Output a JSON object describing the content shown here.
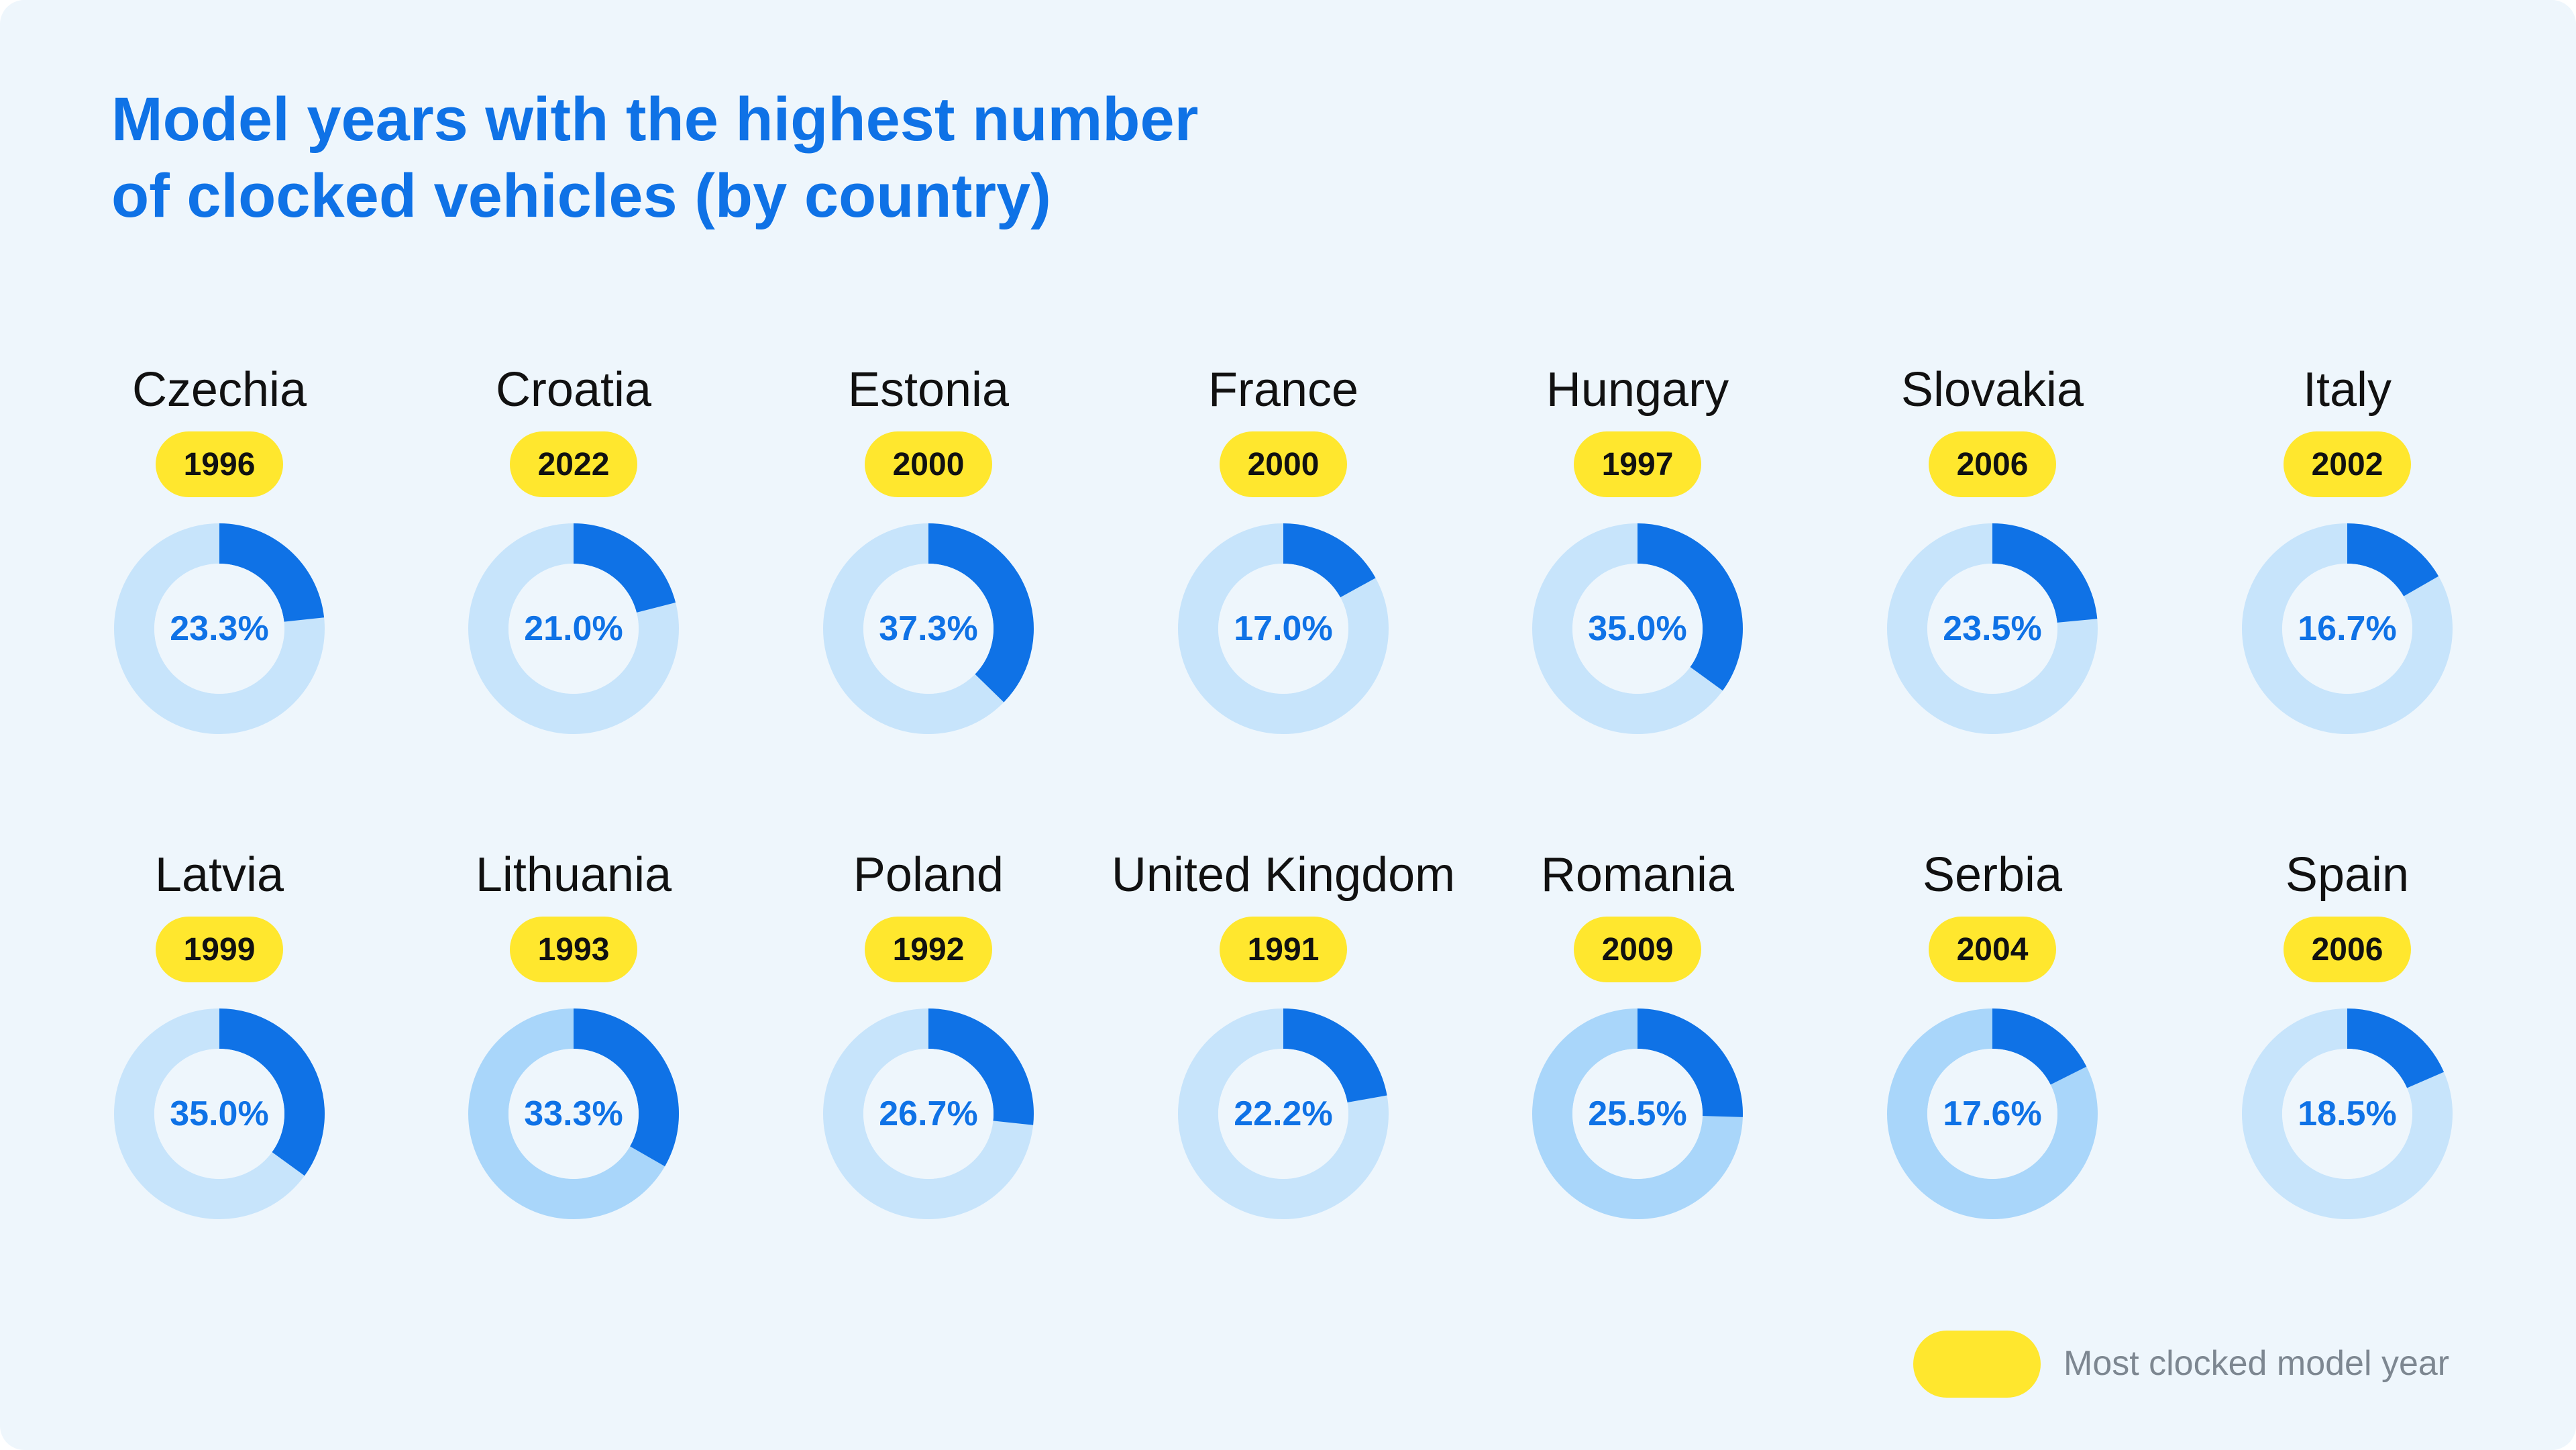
{
  "title": {
    "line1": "Model years with the highest number",
    "line2": "of clocked vehicles (by country)"
  },
  "colors": {
    "accent": "#0f72e6",
    "ring_light": "#c7e4fb",
    "ring_light_alt": "#a9d6fa",
    "donut_center": "#eef6fc",
    "badge": "#ffe72e",
    "background": "#eef6fc"
  },
  "chart_data": {
    "type": "donut-grid",
    "title": "Model years with the highest number of clocked vehicles (by country)",
    "value_unit": "%",
    "series": [
      {
        "country": "Czechia",
        "year": "1996",
        "value": 23.3,
        "label": "23.3%"
      },
      {
        "country": "Croatia",
        "year": "2022",
        "value": 21.0,
        "label": "21.0%"
      },
      {
        "country": "Estonia",
        "year": "2000",
        "value": 37.3,
        "label": "37.3%"
      },
      {
        "country": "France",
        "year": "2000",
        "value": 17.0,
        "label": "17.0%"
      },
      {
        "country": "Hungary",
        "year": "1997",
        "value": 35.0,
        "label": "35.0%"
      },
      {
        "country": "Slovakia",
        "year": "2006",
        "value": 23.5,
        "label": "23.5%"
      },
      {
        "country": "Italy",
        "year": "2002",
        "value": 16.7,
        "label": "16.7%"
      },
      {
        "country": "Latvia",
        "year": "1999",
        "value": 35.0,
        "label": "35.0%"
      },
      {
        "country": "Lithuania",
        "year": "1993",
        "value": 33.3,
        "label": "33.3%"
      },
      {
        "country": "Poland",
        "year": "1992",
        "value": 26.7,
        "label": "26.7%"
      },
      {
        "country": "United Kingdom",
        "year": "1991",
        "value": 22.2,
        "label": "22.2%"
      },
      {
        "country": "Romania",
        "year": "2009",
        "value": 25.5,
        "label": "25.5%"
      },
      {
        "country": "Serbia",
        "year": "2004",
        "value": 17.6,
        "label": "17.6%"
      },
      {
        "country": "Spain",
        "year": "2006",
        "value": 18.5,
        "label": "18.5%"
      }
    ],
    "legend": {
      "label": "Most clocked model year"
    }
  }
}
